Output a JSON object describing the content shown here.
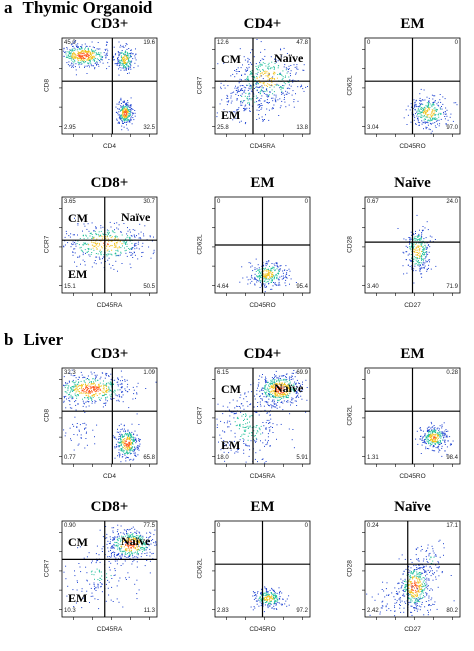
{
  "colors": {
    "frame": "#000000",
    "low": "#1a3fd0",
    "mid": "#1fbf9a",
    "high": "#f2c21b",
    "peak": "#ff5a1f"
  },
  "sections": [
    {
      "letter": "a",
      "name": "Thymic Organoid",
      "panels": [
        {
          "title": "CD3+",
          "xlabel": "CD4",
          "ylabel": "CD8",
          "quadrants": {
            "ul": "45.0",
            "ur": "19.6",
            "ll": "2.95",
            "lr": "32.5"
          },
          "labels": []
        },
        {
          "title": "CD4+",
          "xlabel": "CD45RA",
          "ylabel": "CCR7",
          "quadrants": {
            "ul": "12.6",
            "ur": "47.8",
            "ll": "25.8",
            "lr": "13.8"
          },
          "labels": [
            {
              "text": "CM",
              "pos": "ul"
            },
            {
              "text": "Naïve",
              "pos": "ur"
            },
            {
              "text": "EM",
              "pos": "ll"
            }
          ]
        },
        {
          "title": "EM",
          "xlabel": "CD45RO",
          "ylabel": "CD62L",
          "quadrants": {
            "ul": "0",
            "ur": "0",
            "ll": "3.04",
            "lr": "97.0"
          },
          "labels": []
        },
        {
          "title": "CD8+",
          "xlabel": "CD45RA",
          "ylabel": "CCR7",
          "quadrants": {
            "ul": "3.65",
            "ur": "30.7",
            "ll": "15.1",
            "lr": "50.5"
          },
          "labels": [
            {
              "text": "CM",
              "pos": "ul"
            },
            {
              "text": "Naïve",
              "pos": "ur"
            },
            {
              "text": "EM",
              "pos": "ll"
            }
          ]
        },
        {
          "title": "EM",
          "xlabel": "CD45RO",
          "ylabel": "CD62L",
          "quadrants": {
            "ul": "0",
            "ur": "0",
            "ll": "4.64",
            "lr": "95.4"
          },
          "labels": []
        },
        {
          "title": "Naïve",
          "xlabel": "CD27",
          "ylabel": "CD28",
          "quadrants": {
            "ul": "0.67",
            "ur": "24.0",
            "ll": "3.40",
            "lr": "71.9"
          },
          "labels": []
        }
      ]
    },
    {
      "letter": "b",
      "name": "Liver",
      "panels": [
        {
          "title": "CD3+",
          "xlabel": "CD4",
          "ylabel": "CD8",
          "quadrants": {
            "ul": "32.3",
            "ur": "1.09",
            "ll": "0.77",
            "lr": "65.8"
          },
          "labels": []
        },
        {
          "title": "CD4+",
          "xlabel": "CD45RA",
          "ylabel": "CCR7",
          "quadrants": {
            "ul": "6.15",
            "ur": "69.9",
            "ll": "18.0",
            "lr": "5.91"
          },
          "labels": [
            {
              "text": "CM",
              "pos": "ul"
            },
            {
              "text": "Naïve",
              "pos": "ur"
            },
            {
              "text": "EM",
              "pos": "ll"
            }
          ]
        },
        {
          "title": "EM",
          "xlabel": "CD45RO",
          "ylabel": "CD62L",
          "quadrants": {
            "ul": "0",
            "ur": "0.28",
            "ll": "1.31",
            "lr": "98.4"
          },
          "labels": []
        },
        {
          "title": "CD8+",
          "xlabel": "CD45RA",
          "ylabel": "CCR7",
          "quadrants": {
            "ul": "0.90",
            "ur": "77.5",
            "ll": "10.3",
            "lr": "11.3"
          },
          "labels": [
            {
              "text": "CM",
              "pos": "ul"
            },
            {
              "text": "Naïve",
              "pos": "ur"
            },
            {
              "text": "EM",
              "pos": "ll"
            }
          ]
        },
        {
          "title": "EM",
          "xlabel": "CD45RO",
          "ylabel": "CD62L",
          "quadrants": {
            "ul": "0",
            "ur": "0",
            "ll": "2.83",
            "lr": "97.2"
          },
          "labels": []
        },
        {
          "title": "Naïve",
          "xlabel": "CD27",
          "ylabel": "CD28",
          "quadrants": {
            "ul": "0.24",
            "ur": "17.1",
            "ll": "2.42",
            "lr": "80.2"
          },
          "labels": []
        }
      ]
    }
  ]
}
